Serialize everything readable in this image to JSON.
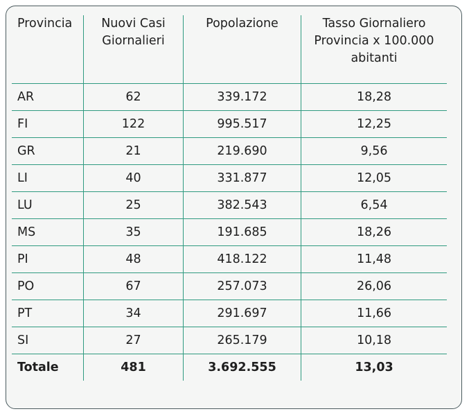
{
  "table": {
    "header": [
      "Provincia",
      "Nuovi Casi Giornalieri",
      "Popolazione",
      "Tasso Giornaliero Provincia x 100.000 abitanti"
    ],
    "rows": [
      [
        "AR",
        "62",
        "339.172",
        "18,28"
      ],
      [
        "FI",
        "122",
        "995.517",
        "12,25"
      ],
      [
        "GR",
        "21",
        "219.690",
        "9,56"
      ],
      [
        "LI",
        "40",
        "331.877",
        "12,05"
      ],
      [
        "LU",
        "25",
        "382.543",
        "6,54"
      ],
      [
        "MS",
        "35",
        "191.685",
        "18,26"
      ],
      [
        "PI",
        "48",
        "418.122",
        "11,48"
      ],
      [
        "PO",
        "67",
        "257.073",
        "26,06"
      ],
      [
        "PT",
        "34",
        "291.697",
        "11,66"
      ],
      [
        "SI",
        "27",
        "265.179",
        "10,18"
      ]
    ],
    "total": [
      "Totale",
      "481",
      "3.692.555",
      "13,03"
    ]
  }
}
